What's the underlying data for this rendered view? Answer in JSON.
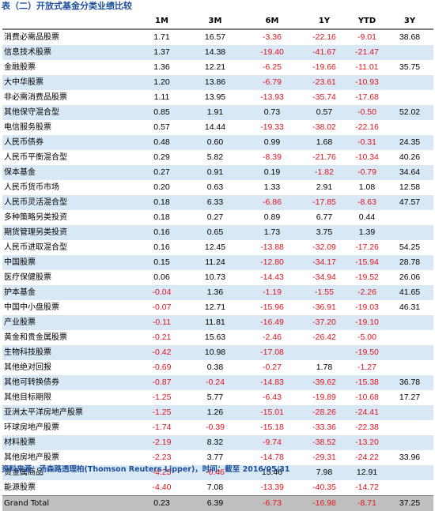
{
  "title": "表（二）开放式基金分类业绩比较",
  "columns": [
    "",
    "1M",
    "3M",
    "6M",
    "1Y",
    "YTD",
    "3Y"
  ],
  "rows": [
    {
      "name": "消费必需品股票",
      "v": [
        "1.71",
        "16.57",
        "-3.36",
        "-22.16",
        "-9.01",
        "38.68"
      ]
    },
    {
      "name": "信息技术股票",
      "v": [
        "1.37",
        "14.38",
        "-19.40",
        "-41.67",
        "-21.47",
        ""
      ]
    },
    {
      "name": "金融股票",
      "v": [
        "1.36",
        "12.21",
        "-6.25",
        "-19.66",
        "-11.01",
        "35.75"
      ]
    },
    {
      "name": "大中华股票",
      "v": [
        "1.20",
        "13.86",
        "-6.79",
        "-23.61",
        "-10.93",
        ""
      ]
    },
    {
      "name": "非必需消费品股票",
      "v": [
        "1.11",
        "13.95",
        "-13.93",
        "-35.74",
        "-17.68",
        ""
      ]
    },
    {
      "name": "其他保守混合型",
      "v": [
        "0.85",
        "1.91",
        "0.73",
        "0.57",
        "-0.50",
        "52.02"
      ]
    },
    {
      "name": "电信服务股票",
      "v": [
        "0.57",
        "14.44",
        "-19.33",
        "-38.02",
        "-22.16",
        ""
      ]
    },
    {
      "name": "人民币债券",
      "v": [
        "0.48",
        "0.60",
        "0.99",
        "1.68",
        "-0.31",
        "24.35"
      ]
    },
    {
      "name": "人民币平衡混合型",
      "v": [
        "0.29",
        "5.82",
        "-8.39",
        "-21.76",
        "-10.34",
        "40.26"
      ]
    },
    {
      "name": "保本基金",
      "v": [
        "0.27",
        "0.91",
        "0.19",
        "-1.82",
        "-0.79",
        "34.64"
      ]
    },
    {
      "name": "人民币货币市场",
      "v": [
        "0.20",
        "0.63",
        "1.33",
        "2.91",
        "1.08",
        "12.58"
      ]
    },
    {
      "name": "人民币灵活混合型",
      "v": [
        "0.18",
        "6.33",
        "-6.86",
        "-17.85",
        "-8.63",
        "47.57"
      ]
    },
    {
      "name": "多种策略另类投资",
      "v": [
        "0.18",
        "0.27",
        "0.89",
        "6.77",
        "0.44",
        ""
      ]
    },
    {
      "name": "期货管理另类投资",
      "v": [
        "0.16",
        "0.65",
        "1.73",
        "3.75",
        "1.39",
        ""
      ]
    },
    {
      "name": "人民币进取混合型",
      "v": [
        "0.16",
        "12.45",
        "-13.88",
        "-32.09",
        "-17.26",
        "54.25"
      ]
    },
    {
      "name": "中国股票",
      "v": [
        "0.15",
        "11.24",
        "-12.80",
        "-34.17",
        "-15.94",
        "28.78"
      ]
    },
    {
      "name": "医疗保健股票",
      "v": [
        "0.06",
        "10.73",
        "-14.43",
        "-34.94",
        "-19.52",
        "26.06"
      ]
    },
    {
      "name": "护本基金",
      "v": [
        "-0.04",
        "1.36",
        "-1.19",
        "-1.55",
        "-2.26",
        "41.65"
      ]
    },
    {
      "name": "中国中小盘股票",
      "v": [
        "-0.07",
        "12.71",
        "-15.96",
        "-36.91",
        "-19.03",
        "46.31"
      ]
    },
    {
      "name": "产业股票",
      "v": [
        "-0.11",
        "11.81",
        "-16.49",
        "-37.20",
        "-19.10",
        ""
      ]
    },
    {
      "name": "黄金和贵金属股票",
      "v": [
        "-0.21",
        "15.63",
        "-2.46",
        "-26.42",
        "-5.00",
        ""
      ]
    },
    {
      "name": "生物科技股票",
      "v": [
        "-0.42",
        "10.98",
        "-17.08",
        "",
        "-19.50",
        ""
      ]
    },
    {
      "name": "其他绝对回报",
      "v": [
        "-0.69",
        "0.38",
        "-0.27",
        "1.78",
        "-1.27",
        ""
      ]
    },
    {
      "name": "其他可转换债券",
      "v": [
        "-0.87",
        "-0.24",
        "-14.83",
        "-39.62",
        "-15.38",
        "36.78"
      ]
    },
    {
      "name": "其他目标期限",
      "v": [
        "-1.25",
        "5.77",
        "-6.43",
        "-19.89",
        "-10.68",
        "17.27"
      ]
    },
    {
      "name": "亚洲太平洋房地产股票",
      "v": [
        "-1.25",
        "1.26",
        "-15.01",
        "-28.26",
        "-24.41",
        ""
      ]
    },
    {
      "name": "环球房地产股票",
      "v": [
        "-1.74",
        "-0.39",
        "-15.18",
        "-33.36",
        "-22.38",
        ""
      ]
    },
    {
      "name": "材料股票",
      "v": [
        "-2.19",
        "8.32",
        "-9.74",
        "-38.52",
        "-13.20",
        ""
      ]
    },
    {
      "name": "其他房地产股票",
      "v": [
        "-2.23",
        "3.77",
        "-14.78",
        "-29.31",
        "-24.22",
        "33.96"
      ]
    },
    {
      "name": "贵金属商品",
      "v": [
        "-4.25",
        "-0.46",
        "15.46",
        "7.98",
        "12.91",
        ""
      ]
    },
    {
      "name": "能源股票",
      "v": [
        "-4.40",
        "7.08",
        "-13.39",
        "-40.35",
        "-14.72",
        ""
      ]
    }
  ],
  "total": {
    "name": "Grand Total",
    "v": [
      "0.23",
      "6.39",
      "-6.73",
      "-16.98",
      "-8.71",
      "37.25"
    ]
  },
  "source": "资料来源：汤森路透理柏(Thomson Reuters Lipper)，时间：截至 2016/05/31",
  "colors": {
    "title": "#1f4e9a",
    "negative": "#e0141e",
    "alt_row": "#d9e8f5",
    "total_row": "#bfbfbf"
  }
}
